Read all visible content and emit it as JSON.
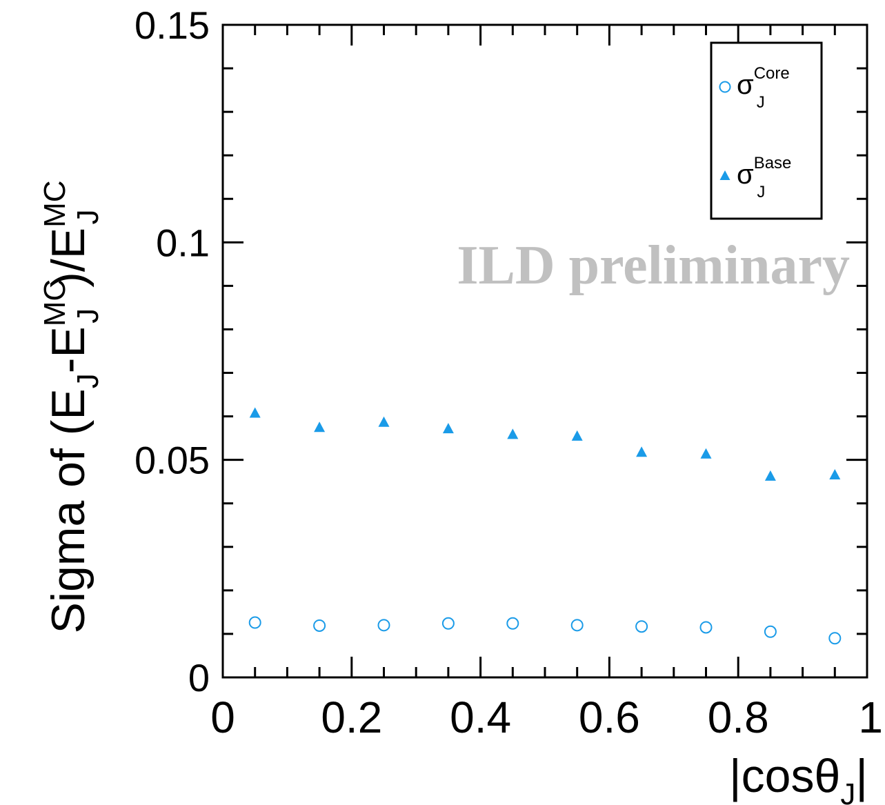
{
  "chart_data": {
    "type": "scatter",
    "xlabel": {
      "main": "|cosθ",
      "sub": "J",
      "end": "|"
    },
    "ylabel": {
      "prefix": "Sigma of (E",
      "sub1": "J",
      "mid1": "-E",
      "sup2": "MC",
      "sub2": "J",
      "mid2": ")/E",
      "sup3": "MC",
      "sub3": "J"
    },
    "xlim": [
      0,
      1
    ],
    "ylim": [
      0,
      0.15
    ],
    "xticks": [
      0,
      0.2,
      0.4,
      0.6,
      0.8,
      1
    ],
    "xtick_labels": [
      "0",
      "0.2",
      "0.4",
      "0.6",
      "0.8",
      "1"
    ],
    "yticks": [
      0,
      0.05,
      0.1,
      0.15
    ],
    "ytick_labels": [
      "0",
      "0.05",
      "0.1",
      "0.15"
    ],
    "x": [
      0.05,
      0.15,
      0.25,
      0.35,
      0.45,
      0.55,
      0.65,
      0.75,
      0.85,
      0.95
    ],
    "series": [
      {
        "name": {
          "sym": "σ",
          "sup": "Core",
          "sub": "J"
        },
        "marker": "open-circle",
        "color": "#1a9be8",
        "values": [
          0.0126,
          0.0119,
          0.012,
          0.0124,
          0.0124,
          0.012,
          0.0117,
          0.0115,
          0.0105,
          0.009
        ]
      },
      {
        "name": {
          "sym": "σ",
          "sup": "Base",
          "sub": "J"
        },
        "marker": "filled-triangle",
        "color": "#1a9be8",
        "values": [
          0.0605,
          0.0572,
          0.0584,
          0.0569,
          0.0556,
          0.0552,
          0.0515,
          0.0511,
          0.046,
          0.0463
        ]
      }
    ],
    "legend_position": "top-right",
    "annotation": "ILD preliminary",
    "grid": false
  }
}
